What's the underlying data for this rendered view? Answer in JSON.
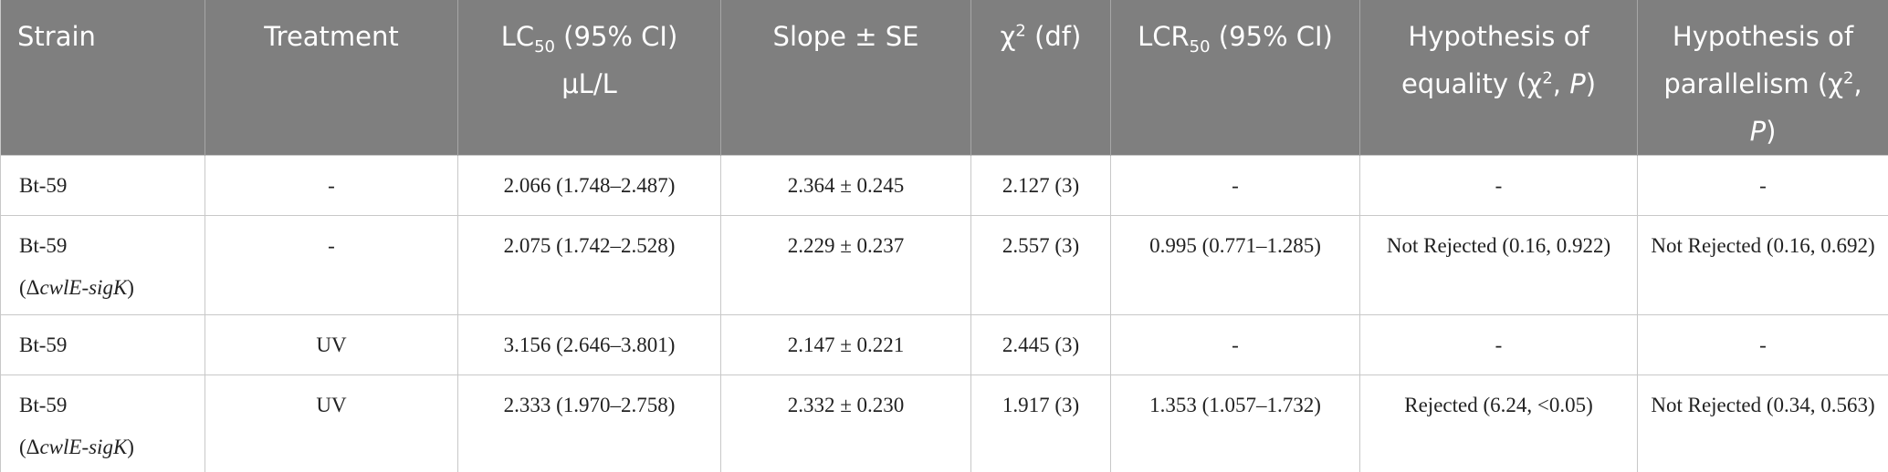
{
  "table": {
    "header": [
      [
        "Strain"
      ],
      [
        "Treatment"
      ],
      [
        "LC",
        "50",
        " (95% CI)",
        "μL/L"
      ],
      [
        "Slope ± SE"
      ],
      [
        "χ",
        "2",
        " (df)"
      ],
      [
        "LCR",
        "50",
        " (95% CI)"
      ],
      [
        "Hypothesis of equality (χ",
        "2",
        ", ",
        "P",
        ")"
      ],
      [
        "Hypothesis of parallelism (χ",
        "2",
        ", ",
        "P",
        ")"
      ]
    ],
    "rows": [
      [
        [
          "Bt-59"
        ],
        "-",
        "2.066 (1.748–2.487)",
        "2.364 ± 0.245",
        "2.127 (3)",
        "-",
        "-",
        "-"
      ],
      [
        [
          "Bt-59",
          "(Δ",
          "cwlE-sigK",
          ")"
        ],
        "-",
        "2.075 (1.742–2.528)",
        "2.229 ± 0.237",
        "2.557 (3)",
        "0.995 (0.771–1.285)",
        "Not Rejected (0.16, 0.922)",
        "Not Rejected (0.16, 0.692)"
      ],
      [
        [
          "Bt-59"
        ],
        "UV",
        "3.156 (2.646–3.801)",
        "2.147 ± 0.221",
        "2.445 (3)",
        "-",
        "-",
        "-"
      ],
      [
        [
          "Bt-59",
          "(Δ",
          "cwlE-sigK",
          ")"
        ],
        "UV",
        "2.333 (1.970–2.758)",
        "2.332 ± 0.230",
        "1.917 (3)",
        "1.353 (1.057–1.732)",
        "Rejected (6.24, <0.05)",
        "Not Rejected (0.34, 0.563)"
      ]
    ]
  }
}
